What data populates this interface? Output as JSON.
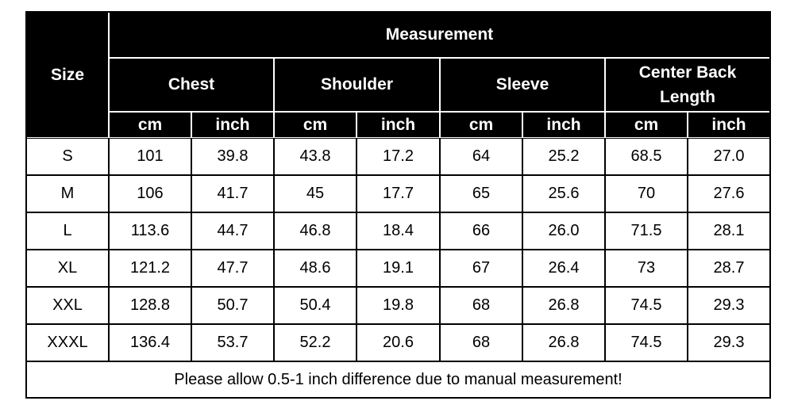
{
  "table": {
    "header": {
      "size": "Size",
      "measurement": "Measurement",
      "groups": [
        "Chest",
        "Shoulder",
        "Sleeve",
        "Center Back Length"
      ],
      "units": [
        "cm",
        "inch",
        "cm",
        "inch",
        "cm",
        "inch",
        "cm",
        "inch"
      ]
    },
    "rows": [
      [
        "S",
        "101",
        "39.8",
        "43.8",
        "17.2",
        "64",
        "25.2",
        "68.5",
        "27.0"
      ],
      [
        "M",
        "106",
        "41.7",
        "45",
        "17.7",
        "65",
        "25.6",
        "70",
        "27.6"
      ],
      [
        "L",
        "113.6",
        "44.7",
        "46.8",
        "18.4",
        "66",
        "26.0",
        "71.5",
        "28.1"
      ],
      [
        "XL",
        "121.2",
        "47.7",
        "48.6",
        "19.1",
        "67",
        "26.4",
        "73",
        "28.7"
      ],
      [
        "XXL",
        "128.8",
        "50.7",
        "50.4",
        "19.8",
        "68",
        "26.8",
        "74.5",
        "29.3"
      ],
      [
        "XXXL",
        "136.4",
        "53.7",
        "52.2",
        "20.6",
        "68",
        "26.8",
        "74.5",
        "29.3"
      ]
    ],
    "note": "Please allow 0.5-1 inch difference due to manual measurement!"
  }
}
